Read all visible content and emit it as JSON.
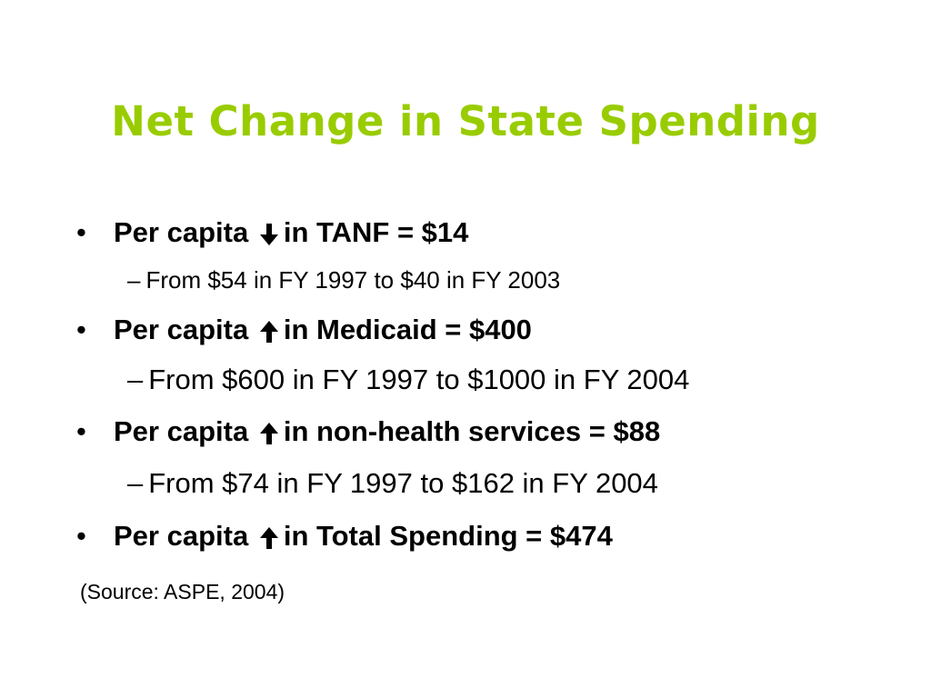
{
  "slide": {
    "title": "Net Change in State Spending",
    "title_color": "#99cc00",
    "bullet_char": "•",
    "dash_char": "–",
    "items": [
      {
        "text_before": "Per capita",
        "arrow": "down-arrow-icon",
        "text_after": "in TANF = $14",
        "sub": "From $54 in FY 1997 to $40 in FY 2003"
      },
      {
        "text_before": "Per capita",
        "arrow": "up-arrow-icon",
        "text_after": "in Medicaid =  $400",
        "sub": "From $600 in FY 1997 to $1000 in FY 2004"
      },
      {
        "text_before": "Per capita",
        "arrow": "up-arrow-icon",
        "text_after": "in non-health services = $88",
        "sub": "From $74 in FY 1997 to $162 in FY 2004"
      },
      {
        "text_before": "Per capita",
        "arrow": "up-arrow-icon",
        "text_after": "in Total Spending = $474"
      }
    ],
    "source": "(Source: ASPE, 2004)"
  }
}
